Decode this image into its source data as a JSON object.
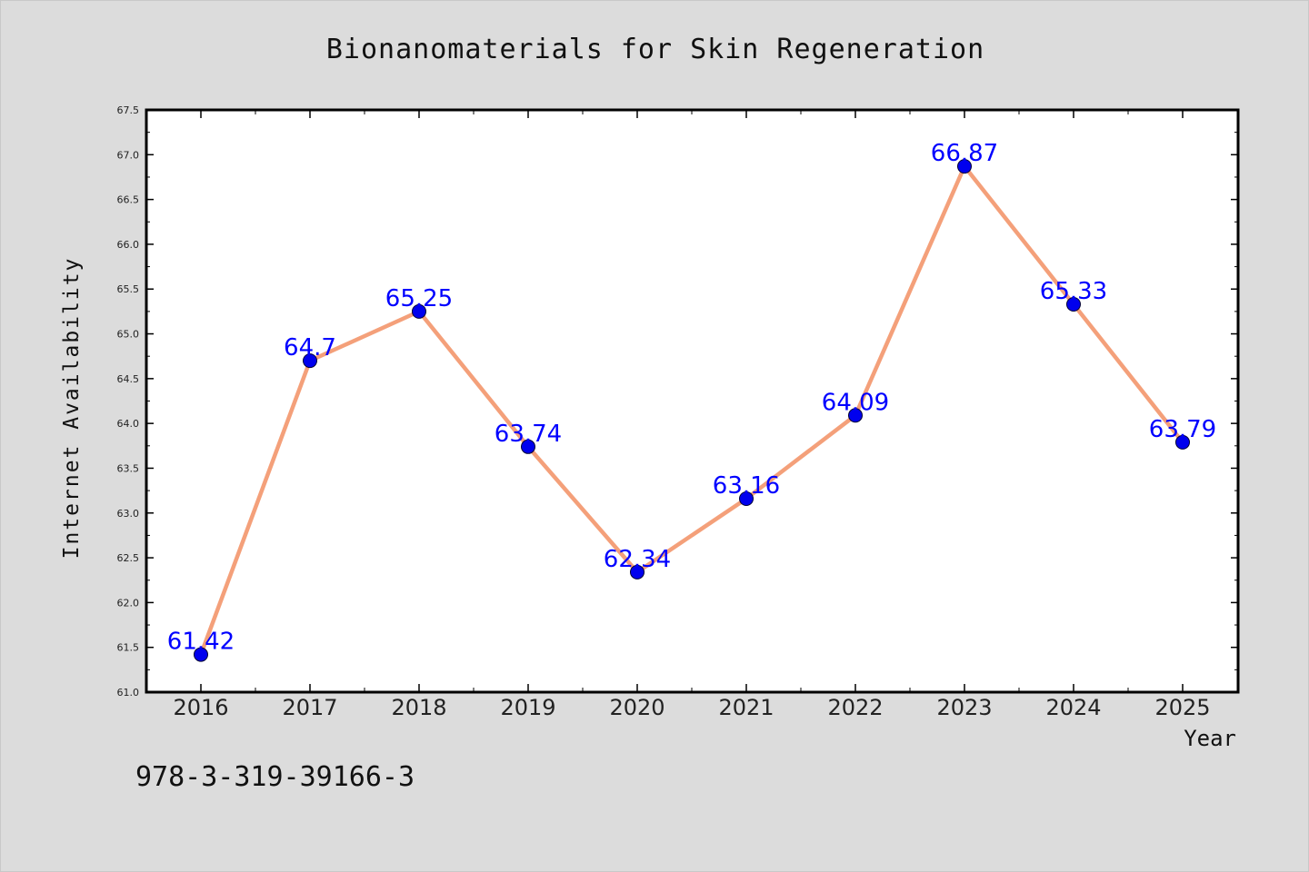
{
  "chart_data": {
    "type": "line",
    "title": "Bionanomaterials for Skin Regeneration",
    "xlabel": "Year",
    "ylabel": "Internet Availability",
    "categories": [
      "2016",
      "2017",
      "2018",
      "2019",
      "2020",
      "2021",
      "2022",
      "2023",
      "2024",
      "2025"
    ],
    "series": [
      {
        "values": [
          61.42,
          64.7,
          65.25,
          63.74,
          62.34,
          63.16,
          64.09,
          66.87,
          65.33,
          63.79
        ],
        "data_labels": [
          "61.42",
          "64.7",
          "65.25",
          "63.74",
          "62.34",
          "63.16",
          "64.09",
          "66.87",
          "65.33",
          "63.79"
        ],
        "line_color": "#f4a07a",
        "marker_color": "#0000ee"
      }
    ],
    "ylim": [
      61.0,
      67.5
    ],
    "yticks": [
      "61.0",
      "61.5",
      "62.0",
      "62.5",
      "63.0",
      "63.5",
      "64.0",
      "64.5",
      "65.0",
      "65.5",
      "66.0",
      "66.5",
      "67.0",
      "67.5"
    ],
    "grid": false,
    "legend": "none"
  },
  "footer": {
    "isbn": "978-3-319-39166-3"
  },
  "colors": {
    "background": "#dcdcdc",
    "plot_background": "#ffffff",
    "label_color": "#0000ff"
  }
}
